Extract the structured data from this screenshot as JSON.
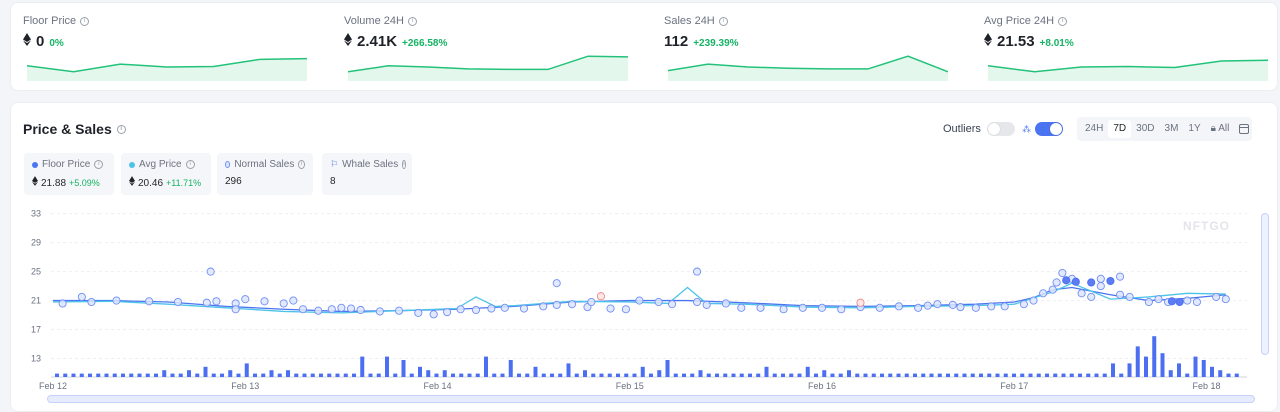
{
  "stats": [
    {
      "label": "Floor Price",
      "value": "0",
      "change": "0%",
      "eth": true,
      "spark": [
        0.55,
        0.3,
        0.62,
        0.5,
        0.52,
        0.82,
        0.85
      ]
    },
    {
      "label": "Volume 24H",
      "value": "2.41K",
      "change": "+266.58%",
      "eth": true,
      "spark": [
        0.3,
        0.55,
        0.5,
        0.42,
        0.4,
        0.4,
        0.95,
        0.92
      ]
    },
    {
      "label": "Sales 24H",
      "value": "112",
      "change": "+239.39%",
      "eth": false,
      "spark": [
        0.35,
        0.62,
        0.5,
        0.45,
        0.42,
        0.42,
        0.95,
        0.3
      ]
    },
    {
      "label": "Avg Price 24H",
      "value": "21.53",
      "change": "+8.01%",
      "eth": true,
      "spark": [
        0.55,
        0.3,
        0.5,
        0.52,
        0.48,
        0.75,
        0.78
      ]
    }
  ],
  "panel": {
    "title": "Price & Sales",
    "outliers_label": "Outliers",
    "outliers_on": false,
    "whale_on": true,
    "ranges": [
      "24H",
      "7D",
      "30D",
      "3M",
      "1Y",
      "All"
    ],
    "active_range": "7D",
    "all_locked": true
  },
  "legend": [
    {
      "name": "Floor Price",
      "value": "21.88",
      "change": "+5.09%",
      "eth": true,
      "kind": "dot",
      "color": "#4b74f0"
    },
    {
      "name": "Avg Price",
      "value": "20.46",
      "change": "+11.71%",
      "eth": true,
      "kind": "dot",
      "color": "#4cc3e8"
    },
    {
      "name": "Normal Sales",
      "value": "296",
      "change": "",
      "eth": false,
      "kind": "ring",
      "color": "#6f8ef5"
    },
    {
      "name": "Whale Sales",
      "value": "8",
      "change": "",
      "eth": false,
      "kind": "whale",
      "color": "#6f8ef5"
    }
  ],
  "watermark": "NFTGO",
  "chart_data": {
    "type": "line",
    "x_ticks": [
      "Feb 12",
      "Feb 13",
      "Feb 14",
      "Feb 15",
      "Feb 16",
      "Feb 17",
      "Feb 18"
    ],
    "y_ticks": [
      33,
      29,
      25,
      21,
      17,
      13
    ],
    "ylim": [
      11,
      33
    ],
    "grid": true,
    "series": [
      {
        "name": "Floor Price",
        "color": "#4b74f0",
        "x": [
          0,
          0.3,
          0.6,
          0.9,
          1.2,
          1.5,
          1.8,
          2.1,
          2.4,
          2.7,
          3.0,
          3.3,
          3.6,
          3.9,
          4.2,
          4.5,
          4.8,
          5.0,
          5.1,
          5.2,
          5.3,
          5.5,
          5.7,
          5.9,
          6.1
        ],
        "y": [
          21,
          21,
          20.8,
          20.2,
          19.8,
          19.5,
          19.6,
          19.8,
          20.2,
          20.8,
          21,
          21,
          20.7,
          20.3,
          20.2,
          20.3,
          20.5,
          20.8,
          21.4,
          22.5,
          22.8,
          21.8,
          21.0,
          21.3,
          21.8
        ]
      },
      {
        "name": "Avg Price",
        "color": "#4cc3e8",
        "x": [
          0,
          0.3,
          0.6,
          0.9,
          1.2,
          1.5,
          1.8,
          2.1,
          2.2,
          2.3,
          2.4,
          2.7,
          3.0,
          3.2,
          3.3,
          3.4,
          3.6,
          3.9,
          4.2,
          4.5,
          4.8,
          5.0,
          5.2,
          5.3,
          5.5,
          5.7,
          5.9,
          6.1
        ],
        "y": [
          20.8,
          20.9,
          20.5,
          20.0,
          19.5,
          19.3,
          19.6,
          19.9,
          21.5,
          20.2,
          20.3,
          20.9,
          20.8,
          20.6,
          22.8,
          20.6,
          20.5,
          20.1,
          20.0,
          20.2,
          20.3,
          20.5,
          22.2,
          23.4,
          21.2,
          21.5,
          22.0,
          21.9
        ]
      }
    ],
    "sales_scatter": [
      [
        0.05,
        20.6
      ],
      [
        0.15,
        21.5
      ],
      [
        0.2,
        20.8
      ],
      [
        0.33,
        21.0
      ],
      [
        0.5,
        20.9
      ],
      [
        0.65,
        20.8
      ],
      [
        0.8,
        20.7
      ],
      [
        0.85,
        20.9
      ],
      [
        0.95,
        20.6
      ],
      [
        1.0,
        21.2
      ],
      [
        0.82,
        25.0
      ],
      [
        0.95,
        19.8
      ],
      [
        1.1,
        20.9
      ],
      [
        1.2,
        20.6
      ],
      [
        1.25,
        21.0
      ],
      [
        1.3,
        19.8
      ],
      [
        1.38,
        19.6
      ],
      [
        1.45,
        19.8
      ],
      [
        1.5,
        20.0
      ],
      [
        1.55,
        19.9
      ],
      [
        1.6,
        19.7
      ],
      [
        1.7,
        19.5
      ],
      [
        1.8,
        19.6
      ],
      [
        1.9,
        19.3
      ],
      [
        1.98,
        19.1
      ],
      [
        2.05,
        19.4
      ],
      [
        2.12,
        19.8
      ],
      [
        2.2,
        19.7
      ],
      [
        2.28,
        19.9
      ],
      [
        2.35,
        20.0
      ],
      [
        2.45,
        19.9
      ],
      [
        2.55,
        20.2
      ],
      [
        2.62,
        20.4
      ],
      [
        2.7,
        20.5
      ],
      [
        2.78,
        20.1
      ],
      [
        2.62,
        23.4
      ],
      [
        2.8,
        20.8
      ],
      [
        2.9,
        19.9
      ],
      [
        2.98,
        19.8
      ],
      [
        3.05,
        21.0
      ],
      [
        3.15,
        20.8
      ],
      [
        3.22,
        20.5
      ],
      [
        3.35,
        20.8
      ],
      [
        3.4,
        20.4
      ],
      [
        3.5,
        20.6
      ],
      [
        3.58,
        20.0
      ],
      [
        3.68,
        20.0
      ],
      [
        3.8,
        19.8
      ],
      [
        3.9,
        20.0
      ],
      [
        4.0,
        20.0
      ],
      [
        4.1,
        19.8
      ],
      [
        4.2,
        20.1
      ],
      [
        4.3,
        20.0
      ],
      [
        4.4,
        20.2
      ],
      [
        4.5,
        20.0
      ],
      [
        4.55,
        20.3
      ],
      [
        4.6,
        20.5
      ],
      [
        4.68,
        20.4
      ],
      [
        4.72,
        20.1
      ],
      [
        4.8,
        20.0
      ],
      [
        4.88,
        20.2
      ],
      [
        4.95,
        20.2
      ],
      [
        5.05,
        20.5
      ],
      [
        5.1,
        21.0
      ],
      [
        5.15,
        22.0
      ],
      [
        5.2,
        22.5
      ],
      [
        5.22,
        23.5
      ],
      [
        5.25,
        24.8
      ],
      [
        5.3,
        24.0
      ],
      [
        5.35,
        22.0
      ],
      [
        5.4,
        21.5
      ],
      [
        5.45,
        23.0
      ],
      [
        5.55,
        21.8
      ],
      [
        5.6,
        21.5
      ],
      [
        5.7,
        20.8
      ],
      [
        5.75,
        21.2
      ],
      [
        5.8,
        20.8
      ],
      [
        5.9,
        21.0
      ],
      [
        5.95,
        20.8
      ],
      [
        6.05,
        21.5
      ],
      [
        6.1,
        21.2
      ],
      [
        3.35,
        25.0
      ],
      [
        5.45,
        24.0
      ],
      [
        5.55,
        24.3
      ]
    ],
    "whale_scatter": [
      [
        2.85,
        21.6
      ],
      [
        4.2,
        20.7
      ],
      [
        5.27,
        23.8
      ],
      [
        5.32,
        23.6
      ],
      [
        5.4,
        23.5
      ],
      [
        5.5,
        23.7
      ],
      [
        5.82,
        20.9
      ],
      [
        5.86,
        20.8
      ]
    ],
    "volume_bars": [
      0.12,
      0.12,
      0.12,
      0.12,
      0.12,
      0.12,
      0.12,
      0.12,
      0.12,
      0.12,
      0.12,
      0.12,
      0.12,
      0.12,
      0.12,
      0.12,
      0.12,
      0.12,
      0.12,
      0.12,
      0.12,
      0.12,
      0.12,
      0.12,
      0.12,
      0.12,
      0.12,
      0.12,
      0.12,
      0.12,
      0.12,
      0.12,
      0.12,
      0.12,
      0.12,
      0.12,
      0.12,
      0.12,
      0.12,
      0.12,
      0.12,
      0.12,
      0.12,
      0.12,
      0.12,
      0.12,
      0.12,
      0.12,
      0.12,
      0.12,
      0.12,
      0.12,
      0.12,
      0.12,
      0.12,
      0.12,
      0.12,
      0.12,
      0.12,
      0.12,
      0.12,
      0.12,
      0.12,
      0.12,
      0.12,
      0.12,
      0.12,
      0.12,
      0.12,
      0.12,
      0.12,
      0.12,
      0.12,
      0.12,
      0.12,
      0.12,
      0.12,
      0.12,
      0.12,
      0.12,
      0.12,
      0.12,
      0.12,
      0.12,
      0.12,
      0.12,
      0.12,
      0.12,
      0.12,
      0.12,
      0.12,
      0.12,
      0.12,
      0.12,
      0.12,
      0.12,
      0.12,
      0.12,
      0.12,
      0.12,
      0.12,
      0.12,
      0.12,
      0.12,
      0.12,
      0.12,
      0.12,
      0.12,
      0.12,
      0.12,
      0.12,
      0.12,
      0.12,
      0.12,
      0.12,
      0.12,
      0.12,
      0.12,
      0.12,
      0.12,
      0.12,
      0.12,
      0.12,
      0.12,
      0.12,
      0.12,
      0.12,
      0.12,
      0.12,
      0.12,
      0.12,
      0.12,
      0.12,
      0.12,
      0.12,
      0.12,
      0.12,
      0.12
    ],
    "volume_levels": [
      1,
      1,
      1,
      1,
      1,
      1,
      1,
      1,
      1,
      1,
      1,
      1,
      1,
      2,
      1,
      1,
      2,
      1,
      3,
      1,
      1,
      2,
      1,
      4,
      1,
      1,
      2,
      1,
      2,
      1,
      1,
      1,
      1,
      1,
      1,
      1,
      1,
      6,
      1,
      1,
      6,
      1,
      5,
      1,
      3,
      2,
      1,
      2,
      1,
      1,
      1,
      1,
      6,
      1,
      1,
      5,
      1,
      1,
      3,
      1,
      1,
      1,
      4,
      1,
      2,
      1,
      1,
      1,
      1,
      1,
      1,
      3,
      1,
      2,
      5,
      1,
      1,
      1,
      2,
      1,
      1,
      1,
      1,
      1,
      1,
      1,
      3,
      1,
      1,
      1,
      1,
      3,
      1,
      2,
      1,
      1,
      2,
      1,
      1,
      1,
      1,
      1,
      1,
      1,
      1,
      1,
      1,
      1,
      1,
      1,
      1,
      1,
      1,
      1,
      1,
      1,
      1,
      1,
      1,
      1,
      1,
      1,
      1,
      1,
      1,
      1,
      1,
      1,
      4,
      1,
      4,
      9,
      6,
      12,
      7,
      2,
      4,
      1,
      6,
      5,
      3,
      2,
      1,
      1
    ]
  }
}
